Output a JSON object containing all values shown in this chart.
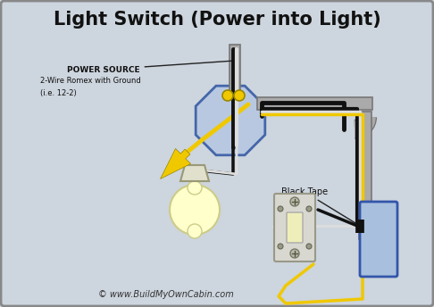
{
  "title": "Light Switch (Power into Light)",
  "subtitle": "© www.BuildMyOwnCabin.com",
  "bg_color": "#cdd5de",
  "border_color": "#888888",
  "label_power_source": "POWER SOURCE",
  "label_romex": "2-Wire Romex with Ground",
  "label_ie": "(i.e. 12-2)",
  "label_black_tape": "Black Tape",
  "wire_black": "#111111",
  "wire_white": "#dddddd",
  "wire_yellow": "#f0c800",
  "conduit_color": "#aaaaaa",
  "conduit_edge": "#777777",
  "junction_box_fill": "#b8c8e0",
  "junction_box_edge": "#4466aa",
  "outlet_box_fill": "#a8c0dd",
  "outlet_box_edge": "#3355aa",
  "switch_fill": "#d8d8d0",
  "switch_edge": "#999988",
  "switch_toggle_fill": "#eeeebb",
  "bulb_fill": "#ffffcc",
  "bulb_edge": "#cccc88",
  "socket_fill": "#e0e0cc",
  "socket_edge": "#999977",
  "text_color": "#111111",
  "annot_color": "#333333",
  "wire_nut_color": "#f0c800"
}
